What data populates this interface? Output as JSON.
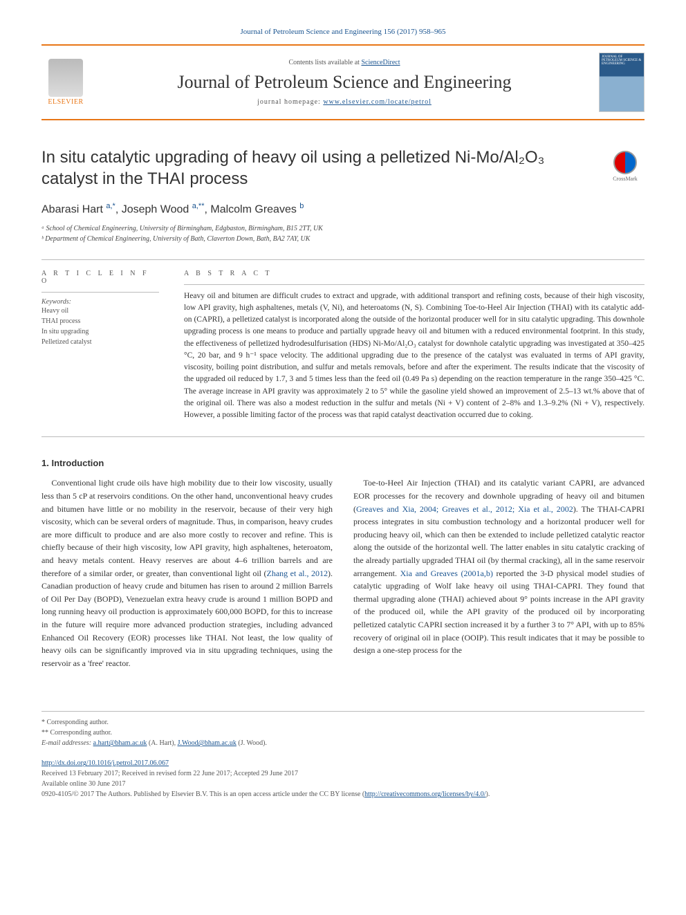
{
  "header": {
    "citation": "Journal of Petroleum Science and Engineering 156 (2017) 958–965",
    "contents_prefix": "Contents lists available at ",
    "sciencedirect": "ScienceDirect",
    "journal_name": "Journal of Petroleum Science and Engineering",
    "homepage_prefix": "journal homepage: ",
    "homepage_url": "www.elsevier.com/locate/petrol",
    "elsevier_label": "ELSEVIER",
    "cover_text": "JOURNAL OF PETROLEUM SCIENCE & ENGINEERING",
    "crossmark_label": "CrossMark"
  },
  "article": {
    "title_html": "In situ catalytic upgrading of heavy oil using a pelletized Ni-Mo/Al₂O₃ catalyst in the THAI process",
    "authors_html": "Abarasi Hart <sup>a,*</sup>, Joseph Wood <sup>a,**</sup>, Malcolm Greaves <sup>b</sup>",
    "affiliations": [
      "ᵃ School of Chemical Engineering, University of Birmingham, Edgbaston, Birmingham, B15 2TT, UK",
      "ᵇ Department of Chemical Engineering, University of Bath, Claverton Down, Bath, BA2 7AY, UK"
    ]
  },
  "info": {
    "heading": "A R T I C L E  I N F O",
    "keywords_label": "Keywords:",
    "keywords": [
      "Heavy oil",
      "THAI process",
      "In situ upgrading",
      "Pelletized catalyst"
    ]
  },
  "abstract": {
    "heading": "A B S T R A C T",
    "text": "Heavy oil and bitumen are difficult crudes to extract and upgrade, with additional transport and refining costs, because of their high viscosity, low API gravity, high asphaltenes, metals (V, Ni), and heteroatoms (N, S). Combining Toe-to-Heel Air Injection (THAI) with its catalytic add-on (CAPRI), a pelletized catalyst is incorporated along the outside of the horizontal producer well for in situ catalytic upgrading. This downhole upgrading process is one means to produce and partially upgrade heavy oil and bitumen with a reduced environmental footprint. In this study, the effectiveness of pelletized hydrodesulfurisation (HDS) Ni-Mo/Al₂O₃ catalyst for downhole catalytic upgrading was investigated at 350–425 °C, 20 bar, and 9 h⁻¹ space velocity. The additional upgrading due to the presence of the catalyst was evaluated in terms of API gravity, viscosity, boiling point distribution, and sulfur and metals removals, before and after the experiment. The results indicate that the viscosity of the upgraded oil reduced by 1.7, 3 and 5 times less than the feed oil (0.49 Pa s) depending on the reaction temperature in the range 350–425 °C. The average increase in API gravity was approximately 2 to 5° while the gasoline yield showed an improvement of 2.5–13 wt.% above that of the original oil. There was also a modest reduction in the sulfur and metals (Ni + V) content of 2–8% and 1.3–9.2% (Ni + V), respectively. However, a possible limiting factor of the process was that rapid catalyst deactivation occurred due to coking."
  },
  "body": {
    "section_heading": "1. Introduction",
    "p1": "Conventional light crude oils have high mobility due to their low viscosity, usually less than 5 cP at reservoirs conditions. On the other hand, unconventional heavy crudes and bitumen have little or no mobility in the reservoir, because of their very high viscosity, which can be several orders of magnitude. Thus, in comparison, heavy crudes are more difficult to produce and are also more costly to recover and refine. This is chiefly because of their high viscosity, low API gravity, high asphaltenes, heteroatom, and heavy metals content. Heavy reserves are about 4–6 trillion barrels and are therefore of a similar order, or greater, than conventional light oil (",
    "p1_link": "Zhang et al., 2012",
    "p1_cont": "). Canadian production of heavy crude and bitumen has risen to around 2 million Barrels of Oil Per Day (BOPD), Venezuelan extra heavy crude is around 1 million BOPD and long running heavy oil production is approximately 600,000 BOPD, for this to increase in the future will require more advanced production strategies, including advanced Enhanced Oil Recovery (EOR) processes like THAI. Not least, the low quality of heavy oils can be significantly ",
    "p2_lead": "improved via in situ upgrading techniques, using the reservoir as a 'free' reactor.",
    "p3": "Toe-to-Heel Air Injection (THAI) and its catalytic variant CAPRI, are advanced EOR processes for the recovery and downhole upgrading of heavy oil and bitumen (",
    "p3_link": "Greaves and Xia, 2004; Greaves et al., 2012; Xia et al., 2002",
    "p3_cont": "). The THAI-CAPRI process integrates in situ combustion technology and a horizontal producer well for producing heavy oil, which can then be extended to include pelletized catalytic reactor along the outside of the horizontal well. The latter enables in situ catalytic cracking of the already partially upgraded THAI oil (by thermal cracking), all in the same reservoir arrangement. ",
    "p3_link2": "Xia and Greaves (2001a,b)",
    "p3_cont2": " reported the 3-D physical model studies of catalytic upgrading of Wolf lake heavy oil using THAI-CAPRI. They found that thermal upgrading alone (THAI) achieved about 9° points increase in the API gravity of the produced oil, while the API gravity of the produced oil by incorporating pelletized catalytic CAPRI section increased it by a further 3 to 7° API, with up to 85% recovery of original oil in place (OOIP). This result indicates that it may be possible to design a one-step process for the"
  },
  "footnotes": {
    "corr1": "* Corresponding author.",
    "corr2": "** Corresponding author.",
    "email_label": "E-mail addresses: ",
    "email1": "a.hart@bham.ac.uk",
    "email1_name": " (A. Hart), ",
    "email2": "J.Wood@bham.ac.uk",
    "email2_name": " (J. Wood)."
  },
  "doi": {
    "url": "http://dx.doi.org/10.1016/j.petrol.2017.06.067",
    "received": "Received 13 February 2017; Received in revised form 22 June 2017; Accepted 29 June 2017",
    "available": "Available online 30 June 2017",
    "copyright": "0920-4105/© 2017 The Authors. Published by Elsevier B.V. This is an open access article under the CC BY license (",
    "cc_url": "http://creativecommons.org/licenses/by/4.0/",
    "copyright_end": ")."
  },
  "colors": {
    "link": "#1a5490",
    "accent": "#e87616",
    "text": "#333333",
    "muted": "#555555"
  }
}
